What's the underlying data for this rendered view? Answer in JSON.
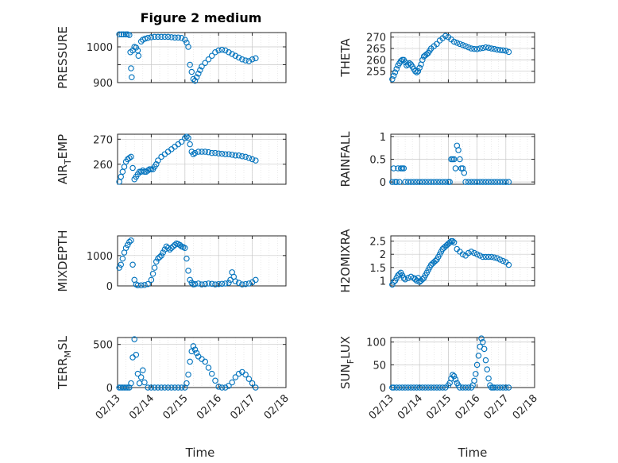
{
  "figure": {
    "title": "Figure 2 medium",
    "xlabel": "Time",
    "colors": {
      "marker": "#0072BD",
      "axis": "#262626",
      "grid": "#c8c8c8",
      "grid_minor": "#dddddd"
    }
  },
  "chart_data": [
    {
      "type": "scatter",
      "ylabel": "PRESSURE",
      "ylabel_sub": "",
      "ylabel_tail": "",
      "xlim": [
        13.0,
        17.2
      ],
      "ylim": [
        900,
        1040
      ],
      "yticks": [
        900,
        950,
        1000
      ],
      "ytick_labels": [
        "900",
        "",
        "1000"
      ],
      "show_x_ticks": false,
      "grid": true,
      "x": [
        13.05,
        13.12,
        13.18,
        13.25,
        13.3,
        13.35,
        13.38,
        13.4,
        13.42,
        13.45,
        13.5,
        13.55,
        13.6,
        13.62,
        13.7,
        13.75,
        13.82,
        13.9,
        14.0,
        14.1,
        14.2,
        14.3,
        14.4,
        14.5,
        14.6,
        14.7,
        14.8,
        14.9,
        15.0,
        15.05,
        15.1,
        15.15,
        15.2,
        15.25,
        15.3,
        15.35,
        15.4,
        15.45,
        15.5,
        15.6,
        15.7,
        15.8,
        15.9,
        16.0,
        16.1,
        16.2,
        16.3,
        16.4,
        16.5,
        16.6,
        16.7,
        16.8,
        16.9,
        17.0,
        17.1
      ],
      "y": [
        1035,
        1035,
        1035,
        1035,
        1035,
        1033,
        985,
        940,
        915,
        990,
        1000,
        998,
        990,
        975,
        1015,
        1020,
        1023,
        1025,
        1027,
        1028,
        1028,
        1028,
        1028,
        1028,
        1027,
        1026,
        1026,
        1025,
        1020,
        1012,
        1000,
        950,
        930,
        910,
        905,
        915,
        925,
        935,
        945,
        955,
        965,
        975,
        985,
        990,
        992,
        990,
        985,
        980,
        975,
        970,
        965,
        962,
        960,
        965,
        968
      ]
    },
    {
      "type": "scatter",
      "ylabel": "THETA",
      "ylabel_sub": "",
      "ylabel_tail": "",
      "xlim": [
        13.0,
        17.2
      ],
      "ylim": [
        250,
        272
      ],
      "yticks": [
        255,
        260,
        265,
        270
      ],
      "ytick_labels": [
        "255",
        "260",
        "265",
        "270"
      ],
      "show_x_ticks": false,
      "grid": true,
      "x": [
        13.05,
        13.1,
        13.15,
        13.2,
        13.25,
        13.3,
        13.35,
        13.4,
        13.45,
        13.5,
        13.55,
        13.6,
        13.65,
        13.7,
        13.75,
        13.8,
        13.85,
        13.9,
        13.95,
        14.0,
        14.05,
        14.1,
        14.15,
        14.2,
        14.25,
        14.3,
        14.35,
        14.4,
        14.5,
        14.6,
        14.7,
        14.8,
        14.9,
        15.0,
        15.1,
        15.2,
        15.3,
        15.4,
        15.5,
        15.6,
        15.7,
        15.8,
        15.9,
        16.0,
        16.1,
        16.2,
        16.3,
        16.4,
        16.5,
        16.6,
        16.7,
        16.8,
        16.9,
        17.0,
        17.1
      ],
      "y": [
        251.5,
        253,
        254.5,
        256,
        257.5,
        258.5,
        259.5,
        260,
        260,
        259,
        257.5,
        258,
        258.5,
        258,
        257,
        256,
        255,
        254.5,
        255,
        256.5,
        258,
        260,
        261.5,
        262,
        262.5,
        263,
        264,
        265,
        266,
        267,
        268.5,
        269.5,
        270.5,
        270,
        269,
        268,
        267.5,
        267,
        266.5,
        266,
        265.5,
        265,
        264.8,
        264.7,
        265,
        265.2,
        265.5,
        265.3,
        265,
        264.8,
        264.5,
        264.3,
        264.2,
        264,
        263.5
      ]
    },
    {
      "type": "scatter",
      "ylabel": "AIR",
      "ylabel_sub": "T",
      "ylabel_tail": "EMP",
      "xlim": [
        13.0,
        17.2
      ],
      "ylim": [
        252,
        272
      ],
      "yticks": [
        260,
        270
      ],
      "ytick_labels": [
        "260",
        "270"
      ],
      "show_x_ticks": false,
      "grid": true,
      "x": [
        13.05,
        13.1,
        13.15,
        13.2,
        13.25,
        13.3,
        13.35,
        13.4,
        13.45,
        13.5,
        13.55,
        13.6,
        13.65,
        13.7,
        13.75,
        13.8,
        13.85,
        13.9,
        13.95,
        14.0,
        14.05,
        14.1,
        14.15,
        14.2,
        14.3,
        14.4,
        14.5,
        14.6,
        14.7,
        14.8,
        14.9,
        15.0,
        15.05,
        15.1,
        15.15,
        15.2,
        15.25,
        15.3,
        15.4,
        15.5,
        15.6,
        15.7,
        15.8,
        15.9,
        16.0,
        16.1,
        16.2,
        16.3,
        16.4,
        16.5,
        16.6,
        16.7,
        16.8,
        16.9,
        17.0,
        17.1
      ],
      "y": [
        253,
        255,
        257,
        259,
        261,
        262,
        262.5,
        263,
        258.5,
        254,
        255,
        256,
        257,
        257,
        257.5,
        257,
        257,
        257.5,
        258,
        258,
        258,
        259,
        260,
        261.5,
        263,
        264,
        265,
        266,
        267,
        268,
        269,
        270.5,
        271,
        270.5,
        268,
        265,
        264,
        264.5,
        265,
        265,
        265,
        264.8,
        264.5,
        264.5,
        264.3,
        264.2,
        264,
        264,
        263.8,
        263.5,
        263.5,
        263.2,
        263,
        262.5,
        262,
        261.5
      ]
    },
    {
      "type": "scatter",
      "ylabel": "RAINFALL",
      "ylabel_sub": "",
      "ylabel_tail": "",
      "xlim": [
        13.0,
        17.2
      ],
      "ylim": [
        -0.05,
        1.05
      ],
      "yticks": [
        0,
        0.5,
        1
      ],
      "ytick_labels": [
        "0",
        "0.5",
        "1"
      ],
      "show_x_ticks": false,
      "grid": true,
      "x": [
        13.05,
        13.1,
        13.15,
        13.2,
        13.25,
        13.3,
        13.35,
        13.4,
        13.45,
        13.5,
        13.6,
        13.7,
        13.8,
        13.9,
        14.0,
        14.1,
        14.2,
        14.3,
        14.4,
        14.5,
        14.6,
        14.7,
        14.8,
        14.9,
        15.0,
        15.05,
        15.1,
        15.15,
        15.2,
        15.25,
        15.3,
        15.35,
        15.4,
        15.45,
        15.5,
        15.55,
        15.6,
        15.7,
        15.8,
        15.9,
        16.0,
        16.1,
        16.2,
        16.3,
        16.4,
        16.5,
        16.6,
        16.7,
        16.8,
        16.9,
        17.0,
        17.1
      ],
      "y": [
        0,
        0.3,
        0,
        0,
        0.3,
        0,
        0.3,
        0.3,
        0.3,
        0,
        0,
        0,
        0,
        0,
        0,
        0,
        0,
        0,
        0,
        0,
        0,
        0,
        0,
        0,
        0,
        0,
        0.5,
        0.5,
        0.5,
        0.3,
        0.8,
        0.7,
        0.5,
        0.3,
        0.3,
        0.2,
        0,
        0,
        0,
        0,
        0,
        0,
        0,
        0,
        0,
        0,
        0,
        0,
        0,
        0,
        0,
        0
      ]
    },
    {
      "type": "scatter",
      "ylabel": "MIXDEPTH",
      "ylabel_sub": "",
      "ylabel_tail": "",
      "xlim": [
        13.0,
        17.2
      ],
      "ylim": [
        0,
        1650
      ],
      "yticks": [
        0,
        1000
      ],
      "ytick_labels": [
        "0",
        "1000"
      ],
      "show_x_ticks": false,
      "grid": true,
      "x": [
        13.05,
        13.1,
        13.15,
        13.2,
        13.25,
        13.3,
        13.35,
        13.4,
        13.45,
        13.5,
        13.55,
        13.6,
        13.7,
        13.8,
        13.9,
        14.0,
        14.05,
        14.1,
        14.15,
        14.2,
        14.25,
        14.3,
        14.35,
        14.4,
        14.45,
        14.5,
        14.55,
        14.6,
        14.65,
        14.7,
        14.75,
        14.8,
        14.85,
        14.9,
        14.95,
        15.0,
        15.05,
        15.1,
        15.15,
        15.2,
        15.25,
        15.3,
        15.4,
        15.5,
        15.6,
        15.7,
        15.8,
        15.9,
        16.0,
        16.1,
        16.2,
        16.3,
        16.35,
        16.4,
        16.45,
        16.5,
        16.6,
        16.7,
        16.8,
        16.9,
        17.0,
        17.1
      ],
      "y": [
        600,
        700,
        900,
        1100,
        1250,
        1350,
        1450,
        1500,
        700,
        200,
        50,
        20,
        20,
        30,
        60,
        200,
        400,
        600,
        800,
        900,
        950,
        1000,
        1100,
        1200,
        1300,
        1250,
        1200,
        1250,
        1300,
        1350,
        1400,
        1380,
        1350,
        1300,
        1280,
        1250,
        900,
        500,
        200,
        100,
        50,
        60,
        80,
        50,
        60,
        80,
        70,
        50,
        60,
        70,
        80,
        100,
        200,
        450,
        300,
        150,
        100,
        50,
        60,
        80,
        120,
        200
      ]
    },
    {
      "type": "scatter",
      "ylabel": "H2OMIXRA",
      "ylabel_sub": "",
      "ylabel_tail": "",
      "xlim": [
        13.0,
        17.2
      ],
      "ylim": [
        0.8,
        2.7
      ],
      "yticks": [
        1,
        1.5,
        2,
        2.5
      ],
      "ytick_labels": [
        "1",
        "1.5",
        "2",
        "2.5"
      ],
      "show_x_ticks": false,
      "grid": true,
      "x": [
        13.05,
        13.1,
        13.15,
        13.2,
        13.25,
        13.3,
        13.35,
        13.4,
        13.45,
        13.5,
        13.6,
        13.7,
        13.8,
        13.85,
        13.9,
        13.95,
        14.0,
        14.05,
        14.1,
        14.15,
        14.2,
        14.25,
        14.3,
        14.35,
        14.4,
        14.45,
        14.5,
        14.55,
        14.6,
        14.65,
        14.7,
        14.75,
        14.8,
        14.85,
        14.9,
        14.95,
        15.0,
        15.05,
        15.1,
        15.15,
        15.2,
        15.3,
        15.4,
        15.5,
        15.6,
        15.7,
        15.8,
        15.9,
        16.0,
        16.1,
        16.2,
        16.3,
        16.4,
        16.5,
        16.6,
        16.7,
        16.8,
        16.9,
        17.0,
        17.1
      ],
      "y": [
        0.85,
        0.95,
        1.0,
        1.1,
        1.2,
        1.25,
        1.3,
        1.2,
        1.1,
        1.05,
        1.1,
        1.15,
        1.1,
        1.05,
        1.0,
        1.1,
        0.95,
        1.0,
        1.05,
        1.1,
        1.2,
        1.3,
        1.4,
        1.5,
        1.6,
        1.65,
        1.7,
        1.75,
        1.8,
        1.9,
        2.0,
        2.1,
        2.2,
        2.25,
        2.3,
        2.35,
        2.4,
        2.45,
        2.5,
        2.5,
        2.45,
        2.2,
        2.1,
        2.0,
        1.95,
        2.05,
        2.1,
        2.05,
        2.0,
        1.95,
        1.9,
        1.9,
        1.9,
        1.9,
        1.88,
        1.85,
        1.8,
        1.75,
        1.7,
        1.6
      ]
    },
    {
      "type": "scatter",
      "ylabel": "TERR",
      "ylabel_sub": "M",
      "ylabel_tail": "SL",
      "xlim": [
        13.0,
        17.2
      ],
      "ylim": [
        0,
        580
      ],
      "yticks": [
        0,
        500
      ],
      "ytick_labels": [
        "0",
        "500"
      ],
      "show_x_ticks": true,
      "grid": true,
      "x": [
        13.05,
        13.1,
        13.15,
        13.2,
        13.25,
        13.3,
        13.35,
        13.4,
        13.45,
        13.5,
        13.55,
        13.6,
        13.65,
        13.7,
        13.75,
        13.8,
        13.9,
        14.0,
        14.1,
        14.2,
        14.3,
        14.4,
        14.5,
        14.6,
        14.7,
        14.8,
        14.9,
        15.0,
        15.05,
        15.1,
        15.15,
        15.2,
        15.25,
        15.3,
        15.35,
        15.4,
        15.5,
        15.6,
        15.7,
        15.8,
        15.9,
        16.0,
        16.1,
        16.2,
        16.3,
        16.4,
        16.5,
        16.6,
        16.7,
        16.8,
        16.9,
        17.0,
        17.1
      ],
      "y": [
        0,
        0,
        0,
        0,
        0,
        0,
        0,
        50,
        350,
        560,
        380,
        160,
        50,
        120,
        200,
        60,
        0,
        0,
        0,
        0,
        0,
        0,
        0,
        0,
        0,
        0,
        0,
        0,
        50,
        150,
        300,
        420,
        480,
        440,
        400,
        360,
        330,
        300,
        230,
        160,
        80,
        10,
        0,
        0,
        20,
        60,
        120,
        160,
        180,
        150,
        100,
        50,
        0
      ]
    },
    {
      "type": "scatter",
      "ylabel": "SUN",
      "ylabel_sub": "F",
      "ylabel_tail": "LUX",
      "xlim": [
        13.0,
        17.2
      ],
      "ylim": [
        0,
        110
      ],
      "yticks": [
        0,
        50,
        100
      ],
      "ytick_labels": [
        "0",
        "50",
        "100"
      ],
      "show_x_ticks": true,
      "grid": true,
      "x": [
        13.05,
        13.1,
        13.2,
        13.3,
        13.4,
        13.5,
        13.6,
        13.7,
        13.8,
        13.9,
        14.0,
        14.1,
        14.2,
        14.3,
        14.4,
        14.5,
        14.6,
        14.7,
        14.8,
        14.9,
        15.0,
        15.05,
        15.1,
        15.15,
        15.2,
        15.25,
        15.3,
        15.35,
        15.4,
        15.5,
        15.6,
        15.7,
        15.8,
        15.85,
        15.9,
        15.95,
        16.0,
        16.05,
        16.1,
        16.15,
        16.2,
        16.25,
        16.3,
        16.35,
        16.4,
        16.45,
        16.5,
        16.55,
        16.6,
        16.7,
        16.8,
        16.9,
        17.0,
        17.1
      ],
      "y": [
        0,
        0,
        0,
        0,
        0,
        0,
        0,
        0,
        0,
        0,
        0,
        0,
        0,
        0,
        0,
        0,
        0,
        0,
        0,
        0,
        5,
        10,
        20,
        28,
        25,
        18,
        10,
        5,
        0,
        0,
        0,
        0,
        0,
        5,
        15,
        30,
        50,
        70,
        90,
        108,
        100,
        85,
        60,
        40,
        20,
        5,
        0,
        0,
        0,
        0,
        0,
        0,
        0,
        0
      ]
    }
  ],
  "xticks": [
    13,
    14,
    15,
    16,
    17,
    18
  ],
  "xtick_labels": [
    "02/13",
    "02/14",
    "02/15",
    "02/16",
    "02/17",
    "02/18"
  ]
}
